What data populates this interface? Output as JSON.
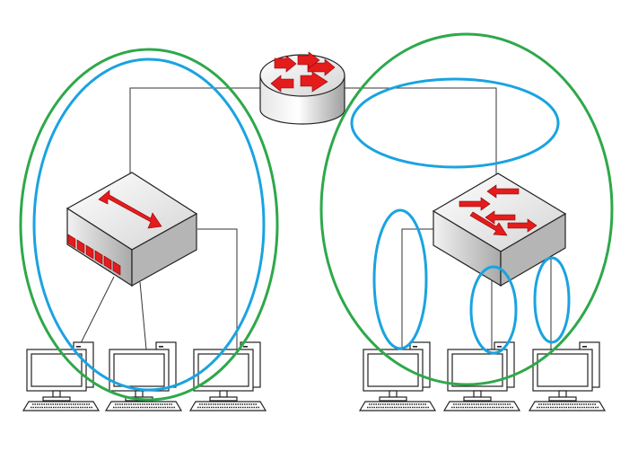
{
  "diagram": {
    "nodes": [
      {
        "id": "router",
        "kind": "router",
        "icon": "router-icon"
      },
      {
        "id": "hub",
        "kind": "hub",
        "icon": "hub-icon"
      },
      {
        "id": "switch",
        "kind": "switch",
        "icon": "switch-icon"
      },
      {
        "id": "pc-left-1",
        "kind": "pc",
        "icon": "desktop-computer-icon"
      },
      {
        "id": "pc-left-2",
        "kind": "pc",
        "icon": "desktop-computer-icon"
      },
      {
        "id": "pc-left-3",
        "kind": "pc",
        "icon": "desktop-computer-icon"
      },
      {
        "id": "pc-right-1",
        "kind": "pc",
        "icon": "desktop-computer-icon"
      },
      {
        "id": "pc-right-2",
        "kind": "pc",
        "icon": "desktop-computer-icon"
      },
      {
        "id": "pc-right-3",
        "kind": "pc",
        "icon": "desktop-computer-icon"
      }
    ],
    "links": [
      {
        "from": "router",
        "to": "hub"
      },
      {
        "from": "router",
        "to": "switch"
      },
      {
        "from": "hub",
        "to": "pc-left-1"
      },
      {
        "from": "hub",
        "to": "pc-left-2"
      },
      {
        "from": "hub",
        "to": "pc-left-3"
      },
      {
        "from": "switch",
        "to": "pc-right-1"
      },
      {
        "from": "switch",
        "to": "pc-right-2"
      },
      {
        "from": "switch",
        "to": "pc-right-3"
      }
    ],
    "domains": [
      {
        "id": "broadcast-domain-left",
        "type": "broadcast",
        "color": "#2ea84a",
        "encloses": [
          "hub",
          "pc-left-1",
          "pc-left-2",
          "pc-left-3"
        ]
      },
      {
        "id": "collision-domain-left",
        "type": "collision",
        "color": "#1aa3e0",
        "encloses": [
          "hub",
          "pc-left-1",
          "pc-left-2",
          "pc-left-3"
        ]
      },
      {
        "id": "broadcast-domain-right",
        "type": "broadcast",
        "color": "#2ea84a",
        "encloses": [
          "switch",
          "pc-right-1",
          "pc-right-2",
          "pc-right-3"
        ]
      },
      {
        "id": "collision-domain-router-switch",
        "type": "collision",
        "color": "#1aa3e0",
        "encloses": [
          "router-switch-link"
        ]
      },
      {
        "id": "collision-domain-pc-right-1",
        "type": "collision",
        "color": "#1aa3e0",
        "encloses": [
          "switch-pc-right-1-link"
        ]
      },
      {
        "id": "collision-domain-pc-right-2",
        "type": "collision",
        "color": "#1aa3e0",
        "encloses": [
          "switch-pc-right-2-link"
        ]
      },
      {
        "id": "collision-domain-pc-right-3",
        "type": "collision",
        "color": "#1aa3e0",
        "encloses": [
          "switch-pc-right-3-link"
        ]
      }
    ],
    "colors": {
      "arrow": "#e51c1c",
      "device_body": "#c9c9c9",
      "outline": "#222222",
      "cable": "#333333"
    }
  }
}
